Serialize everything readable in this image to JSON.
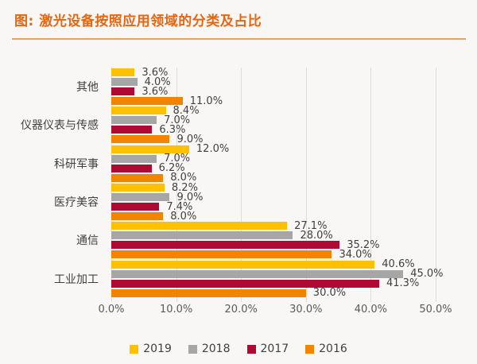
{
  "title": "图: 激光设备按照应用领域的分类及占比",
  "colors": {
    "background": "#F8F7F6",
    "title_text": "#E8650F",
    "title_rule": "#DDA566",
    "gridline": "#DEDDDC",
    "value_label_text": "#3F3F3F",
    "axis_tick_text": "#595959",
    "legend_text": "#404040"
  },
  "chart_data": {
    "type": "bar",
    "orientation": "horizontal",
    "title": "图: 激光设备按照应用领域的分类及占比",
    "categories": [
      "其他",
      "仪器仪表与传感",
      "科研军事",
      "医疗美容",
      "通信",
      "工业加工"
    ],
    "series": [
      {
        "name": "2019",
        "color": "#FFC000",
        "values": [
          3.6,
          8.4,
          12.0,
          8.2,
          27.1,
          40.6
        ]
      },
      {
        "name": "2018",
        "color": "#A6A6A6",
        "values": [
          4.0,
          7.0,
          7.0,
          9.0,
          28.0,
          45.0
        ]
      },
      {
        "name": "2017",
        "color": "#AF0A33",
        "values": [
          3.6,
          6.3,
          6.2,
          7.4,
          35.2,
          41.3
        ]
      },
      {
        "name": "2016",
        "color": "#F28500",
        "values": [
          11.0,
          9.0,
          8.0,
          8.0,
          34.0,
          30.0
        ]
      }
    ],
    "value_label_suffix": "%",
    "value_label_decimals": 1,
    "xlim": [
      0,
      50
    ],
    "xticks": [
      "0.0%",
      "10.0%",
      "20.0%",
      "30.0%",
      "40.0%",
      "50.0%"
    ],
    "grid": true,
    "legend_position": "bottom"
  }
}
